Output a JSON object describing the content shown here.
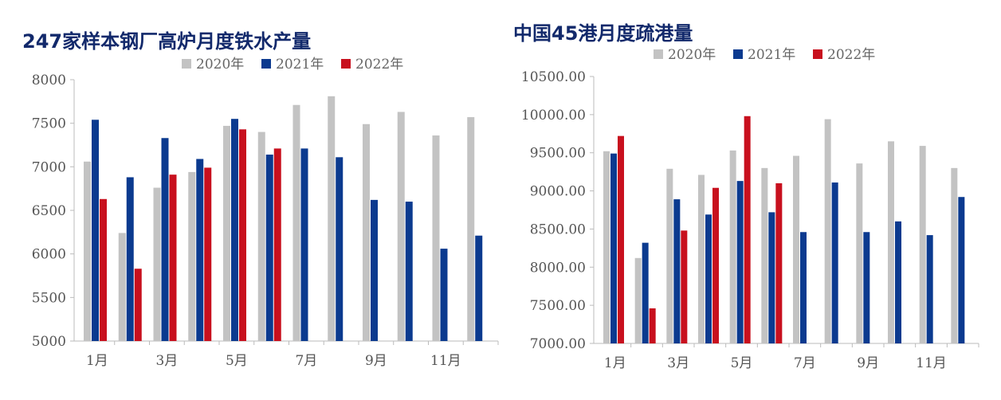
{
  "colors": {
    "2020": "#c3c3c3",
    "2021": "#0b3a8f",
    "2022": "#c8101e"
  },
  "chart_data": [
    {
      "type": "bar",
      "title": "247家样本钢厂高炉月度铁水产量",
      "categories": [
        "1月",
        "2月",
        "3月",
        "4月",
        "5月",
        "6月",
        "7月",
        "8月",
        "9月",
        "10月",
        "11月",
        "12月"
      ],
      "tick_labels": [
        "1月",
        "",
        "3月",
        "",
        "5月",
        "",
        "7月",
        "",
        "9月",
        "",
        "11月",
        ""
      ],
      "ylim": [
        5000,
        8000
      ],
      "yticks": [
        "5000",
        "5500",
        "6000",
        "6500",
        "7000",
        "7500",
        "8000"
      ],
      "legend": "top",
      "series": [
        {
          "name": "2020年",
          "values": [
            7060,
            6240,
            6760,
            6940,
            7470,
            7400,
            7710,
            7810,
            7490,
            7630,
            7360,
            7570
          ]
        },
        {
          "name": "2021年",
          "values": [
            7540,
            6880,
            7330,
            7090,
            7550,
            7140,
            7210,
            7110,
            6620,
            6600,
            6060,
            6210
          ]
        },
        {
          "name": "2022年",
          "values": [
            6630,
            5830,
            6910,
            6990,
            7430,
            7210,
            null,
            null,
            null,
            null,
            null,
            null
          ]
        }
      ]
    },
    {
      "type": "bar",
      "title": "中国45港月度疏港量",
      "categories": [
        "1月",
        "2月",
        "3月",
        "4月",
        "5月",
        "6月",
        "7月",
        "8月",
        "9月",
        "10月",
        "11月",
        "12月"
      ],
      "tick_labels": [
        "1月",
        "",
        "3月",
        "",
        "5月",
        "",
        "7月",
        "",
        "9月",
        "",
        "11月",
        ""
      ],
      "ylim": [
        7000,
        10500
      ],
      "yticks": [
        "7000.00",
        "7500.00",
        "8000.00",
        "8500.00",
        "9000.00",
        "9500.00",
        "10000.00",
        "10500.00"
      ],
      "legend": "top",
      "series": [
        {
          "name": "2020年",
          "values": [
            9520,
            8120,
            9290,
            9210,
            9530,
            9300,
            9460,
            9940,
            9360,
            9650,
            9590,
            9300
          ]
        },
        {
          "name": "2021年",
          "values": [
            9490,
            8320,
            8890,
            8690,
            9130,
            8720,
            8460,
            9110,
            8460,
            8600,
            8420,
            8920
          ]
        },
        {
          "name": "2022年",
          "values": [
            9720,
            7460,
            8480,
            9040,
            9980,
            9100,
            null,
            null,
            null,
            null,
            null,
            null
          ]
        }
      ]
    }
  ]
}
